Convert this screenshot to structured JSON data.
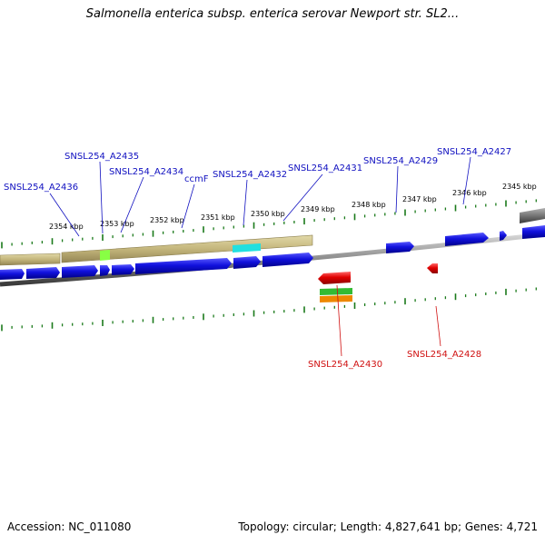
{
  "title": "Salmonella enterica subsp. enterica serovar Newport str. SL2...",
  "footer": {
    "accession": "Accession: NC_011080",
    "summary": "Topology: circular; Length: 4,827,641 bp; Genes: 4,721"
  },
  "kbp_labels": [
    "2354 kbp",
    "2353 kbp",
    "2352 kbp",
    "2351 kbp",
    "2350 kbp",
    "2349 kbp",
    "2348 kbp",
    "2347 kbp",
    "2346 kbp",
    "2345 kbp"
  ],
  "forward_gene_labels": [
    "SNSL254_A2436",
    "SNSL254_A2435",
    "SNSL254_A2434",
    "ccmF",
    "SNSL254_A2432",
    "SNSL254_A2431",
    "SNSL254_A2429",
    "SNSL254_A2427"
  ],
  "reverse_gene_labels": [
    "SNSL254_A2430",
    "SNSL254_A2428"
  ],
  "colors": {
    "forward_gene": "#1111dd",
    "reverse_gene": "#e00000",
    "forward_label": "#1010c0",
    "reverse_label": "#d01010",
    "tick": "#1a7a1a",
    "backbone": "#808080",
    "feature_band": "#c8bc84",
    "cyan_feature": "#22e0e0",
    "lime_feature": "#88ff44",
    "green_feature": "#33bb33",
    "orange_feature": "#ee8800"
  }
}
